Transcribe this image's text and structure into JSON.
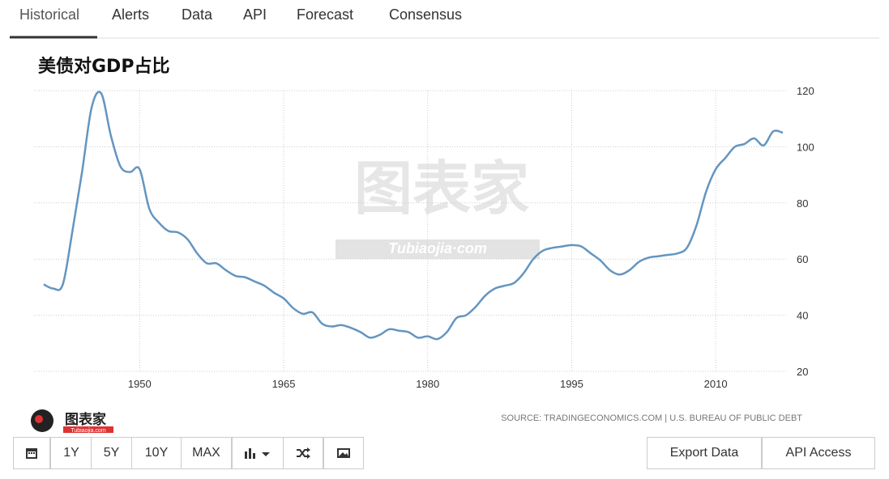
{
  "tabs": [
    "Historical",
    "Alerts",
    "Data",
    "API",
    "Forecast",
    "Consensus"
  ],
  "range_buttons": [
    "1Y",
    "5Y",
    "10Y",
    "MAX"
  ],
  "action_buttons": [
    "Export Data",
    "API Access"
  ],
  "watermark": {
    "title": "图表家",
    "subtitle": "Tubiaojia·com"
  },
  "logo": {
    "title": "图表家",
    "subtitle": "Tubiaojia.com"
  },
  "chart_data": {
    "type": "line",
    "title": "美债对GDP占比",
    "source": "SOURCE: TRADINGECONOMICS.COM | U.S. BUREAU OF PUBLIC DEBT",
    "x": [
      1940,
      1941,
      1942,
      1943,
      1944,
      1945,
      1946,
      1947,
      1948,
      1949,
      1950,
      1951,
      1952,
      1953,
      1954,
      1955,
      1956,
      1957,
      1958,
      1959,
      1960,
      1961,
      1962,
      1963,
      1964,
      1965,
      1966,
      1967,
      1968,
      1969,
      1970,
      1971,
      1972,
      1973,
      1974,
      1975,
      1976,
      1977,
      1978,
      1979,
      1980,
      1981,
      1982,
      1983,
      1984,
      1985,
      1986,
      1987,
      1988,
      1989,
      1990,
      1991,
      1992,
      1993,
      1994,
      1995,
      1996,
      1997,
      1998,
      1999,
      2000,
      2001,
      2002,
      2003,
      2004,
      2005,
      2006,
      2007,
      2008,
      2009,
      2010,
      2011,
      2012,
      2013,
      2014,
      2015,
      2016,
      2017
    ],
    "series": [
      {
        "color": "#6495c0",
        "values": [
          51,
          49.5,
          51,
          70,
          91,
          114,
          119,
          104,
          93,
          91,
          92,
          78,
          73,
          70,
          69.5,
          67,
          62,
          58.5,
          58.5,
          56,
          54,
          53.5,
          52,
          50.5,
          48,
          46,
          42.5,
          40.5,
          41,
          37,
          36,
          36.5,
          35.5,
          34,
          32,
          33,
          35,
          34.5,
          34,
          32,
          32.5,
          31.5,
          34,
          39,
          40,
          43,
          47,
          49.5,
          50.5,
          51.5,
          55,
          60,
          63,
          64,
          64.5,
          65,
          64.5,
          62,
          59.5,
          56,
          54.5,
          56,
          59,
          60.5,
          61,
          61.5,
          62,
          64,
          72,
          84,
          92,
          96,
          100,
          101,
          103,
          100.5,
          105.5,
          105
        ]
      }
    ],
    "xlim": [
      1939,
      2017.5
    ],
    "xticks": [
      1950,
      1965,
      1980,
      1995,
      2010
    ],
    "ylim": [
      20,
      120
    ],
    "yticks": [
      20,
      40,
      60,
      80,
      100,
      120
    ],
    "grid": true
  }
}
